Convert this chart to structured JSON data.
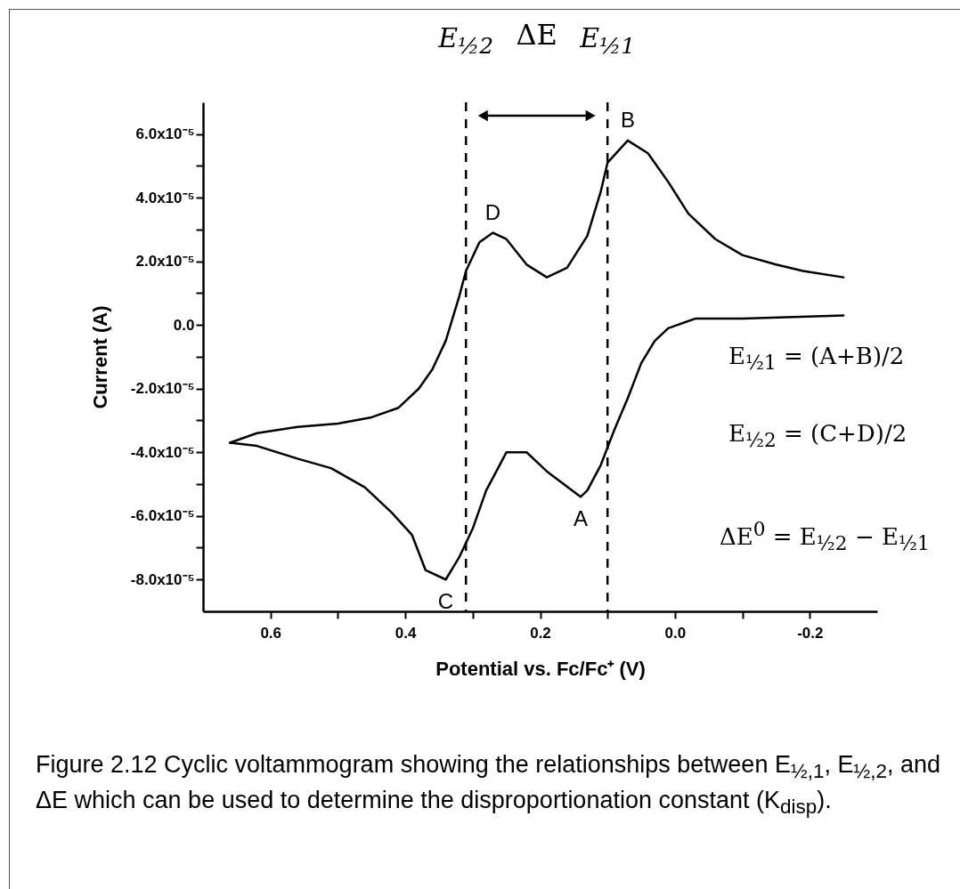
{
  "chart_data": {
    "type": "line",
    "xlabel": "Potential vs. Fc/Fc⁺ (V)",
    "ylabel": "Current (A)",
    "xlim": [
      0.7,
      -0.3
    ],
    "ylim": [
      -9e-05,
      7e-05
    ],
    "xticks": [
      0.6,
      {
        "value": 0.5,
        "label": null
      },
      0.4,
      {
        "value": 0.3,
        "label": null
      },
      0.2,
      {
        "value": 0.1,
        "label": null
      },
      {
        "value": 0,
        "label": "0.0"
      },
      {
        "value": -0.1,
        "label": null
      },
      -0.2
    ],
    "yticks": [
      {
        "value": -8e-05,
        "label": "-8.0x10⁻⁵"
      },
      {
        "value": -7e-05,
        "label": null
      },
      {
        "value": -6e-05,
        "label": "-6.0x10⁻⁵"
      },
      {
        "value": -5e-05,
        "label": null
      },
      {
        "value": -4e-05,
        "label": "-4.0x10⁻⁵"
      },
      {
        "value": -3e-05,
        "label": null
      },
      {
        "value": -2e-05,
        "label": "-2.0x10⁻⁵"
      },
      {
        "value": -1e-05,
        "label": null
      },
      {
        "value": 0,
        "label": "0.0"
      },
      {
        "value": 1e-05,
        "label": null
      },
      {
        "value": 2e-05,
        "label": "2.0x10⁻⁵"
      },
      {
        "value": 3e-05,
        "label": null
      },
      {
        "value": 4e-05,
        "label": "4.0x10⁻⁵"
      },
      {
        "value": 5e-05,
        "label": null
      },
      {
        "value": 6e-05,
        "label": "6.0x10⁻⁵"
      }
    ],
    "grid": false,
    "series": [
      {
        "color": "#000000",
        "x": [
          0.66,
          0.62,
          0.56,
          0.5,
          0.45,
          0.41,
          0.38,
          0.36,
          0.34,
          0.32,
          0.31,
          0.29,
          0.27,
          0.25,
          0.22,
          0.19,
          0.16,
          0.13,
          0.11,
          0.1,
          0.07,
          0.04,
          0.01,
          -0.02,
          -0.06,
          -0.1,
          -0.15,
          -0.19,
          -0.25
        ],
        "values": [
          -3.7e-05,
          -3.4e-05,
          -3.2e-05,
          -3.1e-05,
          -2.9e-05,
          -2.6e-05,
          -2e-05,
          -1.4e-05,
          -5e-06,
          9e-06,
          1.7e-05,
          2.6e-05,
          2.9e-05,
          2.7e-05,
          1.9e-05,
          1.5e-05,
          1.8e-05,
          2.8e-05,
          4.2e-05,
          5.1e-05,
          5.8e-05,
          5.4e-05,
          4.5e-05,
          3.5e-05,
          2.7e-05,
          2.2e-05,
          1.9e-05,
          1.7e-05,
          1.5e-05
        ]
      },
      {
        "color": "#000000",
        "x": [
          -0.25,
          -0.1,
          -0.03,
          0.01,
          0.03,
          0.05,
          0.07,
          0.09,
          0.11,
          0.13,
          0.14,
          0.19,
          0.22,
          0.25,
          0.26,
          0.28,
          0.3,
          0.32,
          0.34,
          0.37,
          0.39,
          0.42,
          0.46,
          0.51,
          0.56,
          0.62,
          0.66
        ],
        "values": [
          3e-06,
          2e-06,
          2e-06,
          -1e-06,
          -5e-06,
          -1.2e-05,
          -2.3e-05,
          -3.3e-05,
          -4.4e-05,
          -5.2e-05,
          -5.4e-05,
          -4.6e-05,
          -4e-05,
          -4e-05,
          -4.4e-05,
          -5.2e-05,
          -6.4e-05,
          -7.3e-05,
          -8e-05,
          -7.7e-05,
          -6.6e-05,
          -5.9e-05,
          -5.1e-05,
          -4.5e-05,
          -4.2e-05,
          -3.8e-05,
          -3.7e-05
        ]
      }
    ],
    "ref_lines": [
      {
        "axis": "x",
        "value": 0.31,
        "label": "E$_{½2}$",
        "line_style": "dashed"
      },
      {
        "axis": "x",
        "value": 0.1,
        "label": "E$_{½1}$",
        "line_style": "dashed"
      }
    ],
    "annotations": [
      {
        "text": "B",
        "x": 0.07,
        "y": 5.8e-05
      },
      {
        "text": "D",
        "x": 0.27,
        "y": 2.9e-05
      },
      {
        "text": "A",
        "x": 0.14,
        "y": -5.4e-05
      },
      {
        "text": "C",
        "x": 0.34,
        "y": -8e-05
      },
      "ΔE",
      "E$_{½1}$ = (A+B)/2",
      "E$_{½2}$ = (C+D)/2",
      "ΔE$^{0}$ = E$_{½2}$ − E$_{½1}$",
      "Figure 2.12 Cyclic voltammogram showing the relationships between E$_{½,1}$, E$_{½,2}$, and ΔE which can be used to determine the disproportionation constant (K$_{disp}$)."
    ]
  }
}
